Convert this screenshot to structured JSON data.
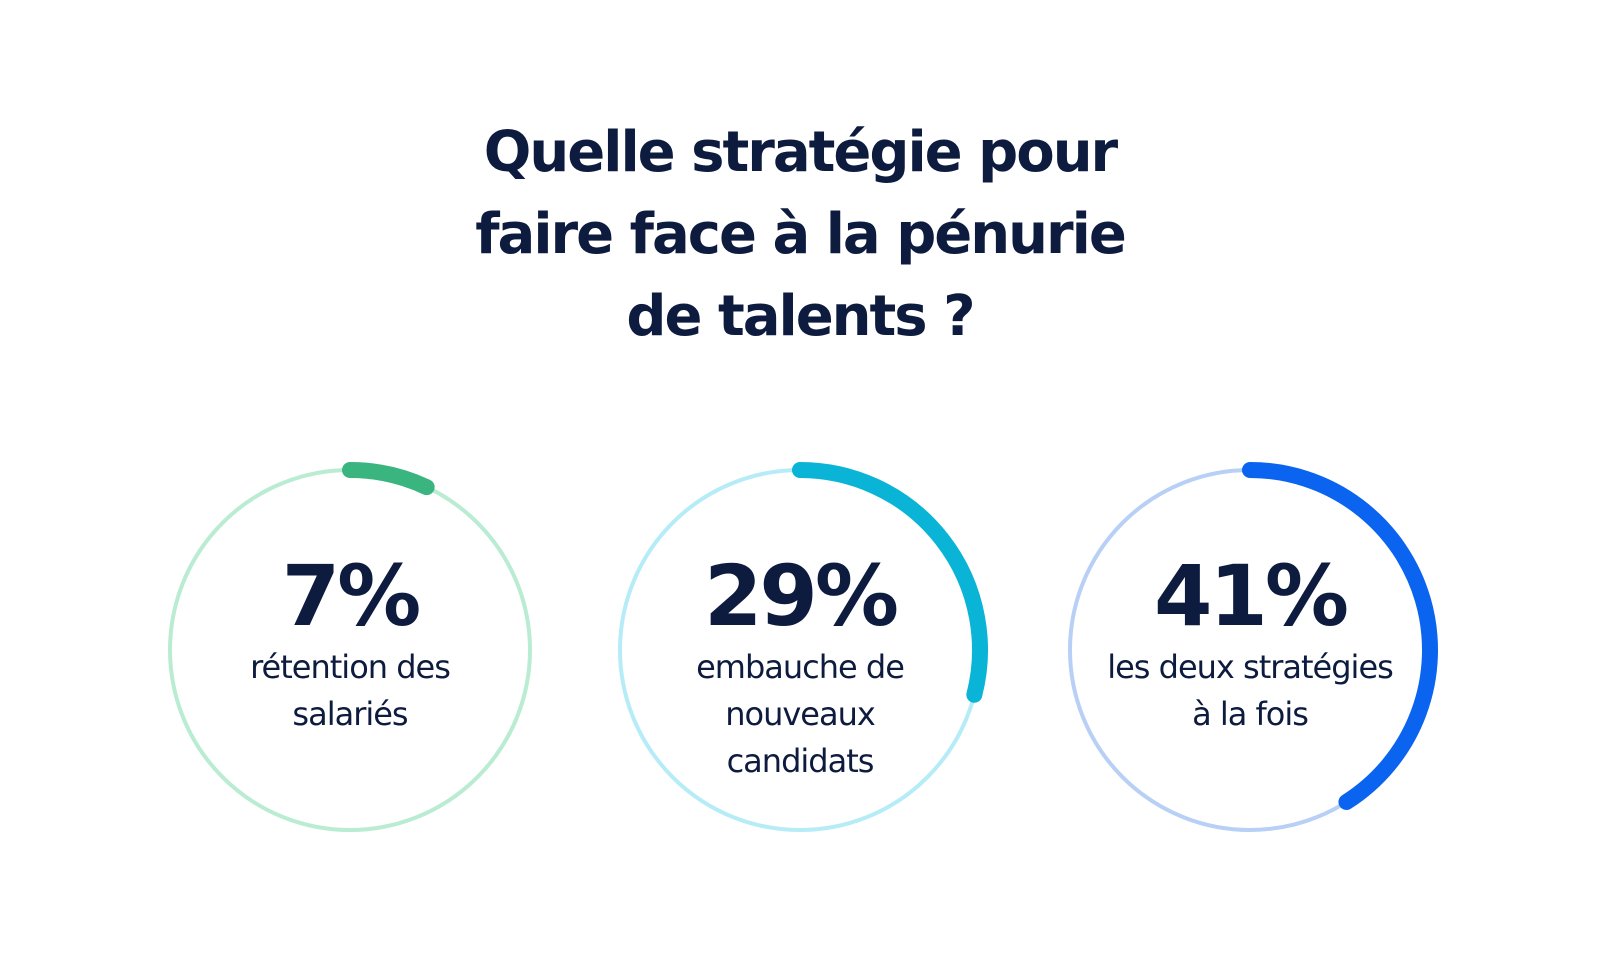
{
  "title": {
    "line1": "Quelle stratégie pour",
    "line2": "faire face à la pénurie",
    "line3": "de talents ?"
  },
  "chart_data": {
    "type": "pie",
    "style": "progress-rings",
    "unit": "%",
    "items": [
      {
        "value": 7,
        "value_label": "7%",
        "label_lines": [
          "rétention des",
          "salariés"
        ],
        "color": "#3bb57f",
        "track_color": "#b9ecd2"
      },
      {
        "value": 29,
        "value_label": "29%",
        "label_lines": [
          "embauche de",
          "nouveaux",
          "candidats"
        ],
        "color": "#0ab4d6",
        "track_color": "#b6ecf7"
      },
      {
        "value": 41,
        "value_label": "41%",
        "label_lines": [
          "les deux stratégies",
          "à la fois"
        ],
        "color": "#0a64f0",
        "track_color": "#b8d0f6"
      }
    ]
  }
}
